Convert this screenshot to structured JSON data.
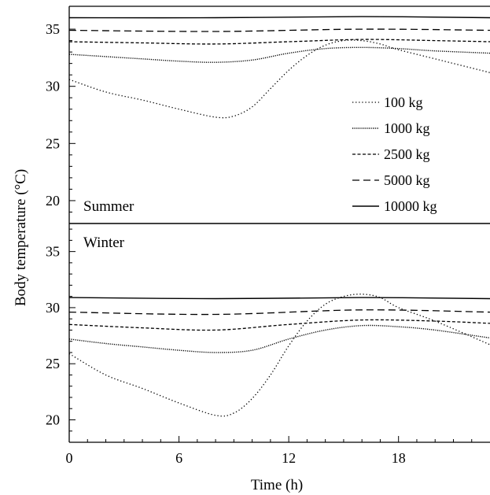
{
  "chart_data": [
    {
      "type": "line",
      "panel_label": "Summer",
      "ylabel": "Body temperature (°C)",
      "xlabel": "Time (h)",
      "xlim": [
        0,
        23
      ],
      "ylim": [
        18,
        37
      ],
      "y_ticks": [
        20,
        25,
        30,
        35
      ],
      "x_ticks": [
        0,
        6,
        12,
        18
      ],
      "grid": false,
      "legend_position": "right",
      "series": [
        {
          "name": "100 kg",
          "style": "dotted-sparse",
          "x": [
            0,
            2,
            4,
            6,
            8,
            9,
            10,
            11,
            12,
            13,
            14,
            15,
            16,
            17,
            18,
            20,
            23
          ],
          "y": [
            30.6,
            29.5,
            28.8,
            28.0,
            27.3,
            27.4,
            28.2,
            29.8,
            31.4,
            32.7,
            33.6,
            34.0,
            34.0,
            33.7,
            33.2,
            32.4,
            31.2
          ]
        },
        {
          "name": "1000 kg",
          "style": "dotted-dense",
          "x": [
            0,
            2,
            4,
            6,
            8,
            10,
            12,
            14,
            16,
            18,
            20,
            23
          ],
          "y": [
            32.8,
            32.6,
            32.4,
            32.2,
            32.1,
            32.3,
            32.9,
            33.3,
            33.4,
            33.3,
            33.1,
            32.9
          ]
        },
        {
          "name": "2500 kg",
          "style": "dashed-short",
          "x": [
            0,
            4,
            8,
            12,
            16,
            20,
            23
          ],
          "y": [
            33.9,
            33.8,
            33.7,
            33.9,
            34.1,
            34.0,
            33.9
          ]
        },
        {
          "name": "5000 kg",
          "style": "dashed-long",
          "x": [
            0,
            8,
            16,
            23
          ],
          "y": [
            34.9,
            34.8,
            35.0,
            34.9
          ]
        },
        {
          "name": "10000 kg",
          "style": "solid",
          "x": [
            0,
            8,
            16,
            23
          ],
          "y": [
            36.0,
            36.0,
            36.1,
            36.0
          ]
        }
      ]
    },
    {
      "type": "line",
      "panel_label": "Winter",
      "ylim": [
        18,
        37.5
      ],
      "y_ticks": [
        20,
        25,
        30,
        35
      ],
      "series": [
        {
          "name": "100 kg",
          "style": "dotted-sparse",
          "x": [
            0,
            2,
            4,
            6,
            8,
            9,
            10,
            11,
            12,
            13,
            14,
            15,
            16,
            17,
            18,
            20,
            23
          ],
          "y": [
            25.9,
            24.0,
            22.8,
            21.5,
            20.4,
            20.6,
            21.9,
            24.0,
            26.6,
            28.8,
            30.3,
            31.0,
            31.2,
            30.9,
            30.0,
            28.8,
            26.7
          ]
        },
        {
          "name": "1000 kg",
          "style": "dotted-dense",
          "x": [
            0,
            2,
            4,
            6,
            8,
            10,
            12,
            14,
            16,
            18,
            20,
            23
          ],
          "y": [
            27.2,
            26.8,
            26.5,
            26.2,
            26.0,
            26.2,
            27.2,
            28.0,
            28.4,
            28.3,
            28.0,
            27.3
          ]
        },
        {
          "name": "2500 kg",
          "style": "dashed-short",
          "x": [
            0,
            4,
            8,
            12,
            16,
            20,
            23
          ],
          "y": [
            28.5,
            28.2,
            28.0,
            28.5,
            28.9,
            28.8,
            28.6
          ]
        },
        {
          "name": "5000 kg",
          "style": "dashed-long",
          "x": [
            0,
            8,
            16,
            23
          ],
          "y": [
            29.6,
            29.4,
            29.8,
            29.6
          ]
        },
        {
          "name": "10000 kg",
          "style": "solid",
          "x": [
            0,
            8,
            16,
            23
          ],
          "y": [
            30.9,
            30.8,
            30.9,
            30.8
          ]
        }
      ]
    }
  ]
}
